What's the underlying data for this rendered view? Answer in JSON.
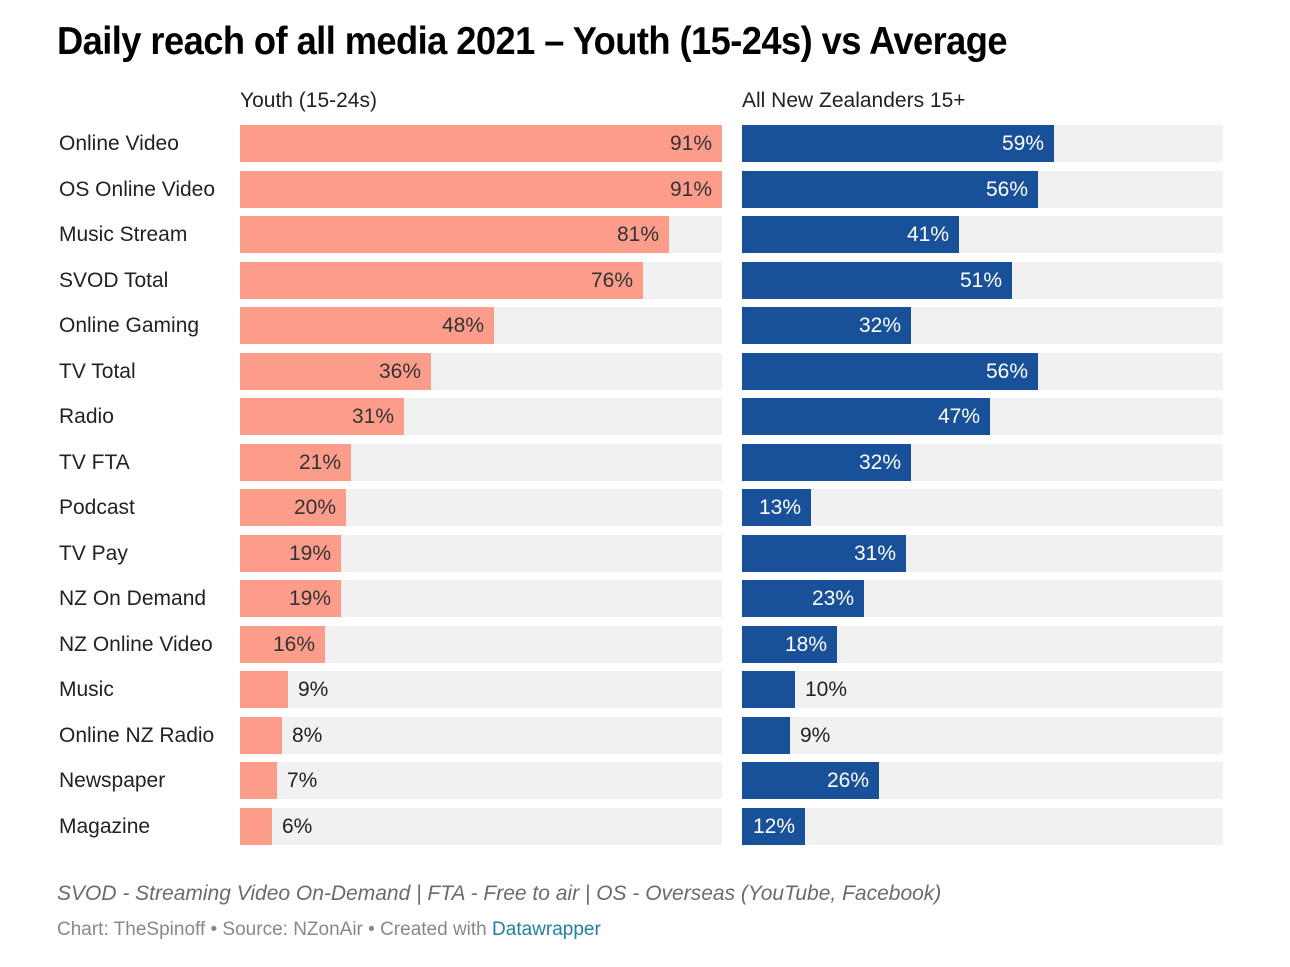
{
  "title": "Daily reach of all media 2021 – Youth (15-24s) vs Average",
  "colors": {
    "youth": "#fc9d8b",
    "all": "#18519a",
    "track": "#f1f1f1",
    "link": "#1d81a2"
  },
  "chart_data": {
    "type": "bar",
    "orientation": "horizontal",
    "title": "Daily reach of all media 2021 – Youth (15-24s) vs Average",
    "xlabel": "",
    "ylabel": "",
    "xlim": [
      0,
      91
    ],
    "value_suffix": "%",
    "grid": false,
    "categories": [
      "Online Video",
      "OS Online Video",
      "Music Stream",
      "SVOD Total",
      "Online Gaming",
      "TV Total",
      "Radio",
      "TV FTA",
      "Podcast",
      "TV Pay",
      "NZ On Demand",
      "NZ Online Video",
      "Music",
      "Online NZ Radio",
      "Newspaper",
      "Magazine"
    ],
    "series": [
      {
        "name": "Youth (15-24s)",
        "values": [
          91,
          91,
          81,
          76,
          48,
          36,
          31,
          21,
          20,
          19,
          19,
          16,
          9,
          8,
          7,
          6
        ]
      },
      {
        "name": "All New Zealanders 15+",
        "values": [
          59,
          56,
          41,
          51,
          32,
          56,
          47,
          32,
          13,
          31,
          23,
          18,
          10,
          9,
          26,
          12
        ]
      }
    ]
  },
  "notes": "SVOD - Streaming Video On-Demand | FTA - Free to air | OS - Overseas (YouTube, Facebook)",
  "credit": {
    "prefix": "Chart: TheSpinoff • Source: NZonAir • Created with ",
    "link_text": "Datawrapper"
  }
}
